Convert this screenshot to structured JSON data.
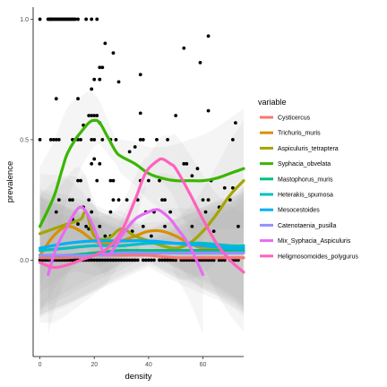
{
  "chart_data": {
    "type": "scatter",
    "xlabel": "density",
    "ylabel": "prevalence",
    "xlim": [
      -2.5,
      75
    ],
    "ylim": [
      -0.4,
      1.05
    ],
    "x_ticks": [
      0,
      20,
      40,
      60
    ],
    "x_tick_labels": [
      "0",
      "20",
      "40",
      "60"
    ],
    "y_ticks": [
      0.0,
      0.5,
      1.0
    ],
    "y_tick_labels": [
      "0.0",
      "0.5",
      "1.0"
    ],
    "grid": false,
    "legend": {
      "title": "variable",
      "position": "right"
    },
    "points": [
      [
        0,
        1
      ],
      [
        4,
        1
      ],
      [
        3,
        1
      ],
      [
        3.5,
        1
      ],
      [
        4,
        1
      ],
      [
        4.5,
        1
      ],
      [
        5,
        1
      ],
      [
        5.5,
        1
      ],
      [
        6,
        1
      ],
      [
        6.5,
        1
      ],
      [
        7,
        1
      ],
      [
        7.5,
        1
      ],
      [
        8,
        1
      ],
      [
        8.5,
        1
      ],
      [
        9,
        1
      ],
      [
        9.5,
        1
      ],
      [
        10,
        1
      ],
      [
        10.5,
        1
      ],
      [
        11,
        1
      ],
      [
        11.5,
        1
      ],
      [
        12,
        1
      ],
      [
        12.5,
        1
      ],
      [
        13,
        1
      ],
      [
        14,
        1
      ],
      [
        17,
        1
      ],
      [
        19,
        1
      ],
      [
        21,
        1
      ],
      [
        22,
        0.8
      ],
      [
        24,
        0.9
      ],
      [
        27,
        0.86
      ],
      [
        37,
        0.77
      ],
      [
        53,
        0.88
      ],
      [
        59,
        0.82
      ],
      [
        62,
        0.93
      ],
      [
        6,
        0.67
      ],
      [
        14,
        0.67
      ],
      [
        19,
        0.71
      ],
      [
        20,
        0.75
      ],
      [
        22,
        0.75
      ],
      [
        23,
        0.8
      ],
      [
        29,
        0.74
      ],
      [
        37,
        0.61
      ],
      [
        50,
        0.6
      ],
      [
        62,
        0.62
      ],
      [
        72,
        0.57
      ],
      [
        16,
        0.56
      ],
      [
        18,
        0.6
      ],
      [
        19,
        0.6
      ],
      [
        20,
        0.6
      ],
      [
        21,
        0.6
      ],
      [
        22,
        0.57
      ],
      [
        23,
        0.5
      ],
      [
        0,
        0.5
      ],
      [
        4,
        0.5
      ],
      [
        5,
        0.5
      ],
      [
        6,
        0.5
      ],
      [
        7,
        0.5
      ],
      [
        12,
        0.5
      ],
      [
        13,
        0.5
      ],
      [
        14,
        0.5
      ],
      [
        15,
        0.5
      ],
      [
        19,
        0.5
      ],
      [
        20,
        0.5
      ],
      [
        26,
        0.5
      ],
      [
        28,
        0.5
      ],
      [
        33,
        0.45
      ],
      [
        35,
        0.47
      ],
      [
        37,
        0.5
      ],
      [
        38,
        0.5
      ],
      [
        43,
        0.5
      ],
      [
        47,
        0.5
      ],
      [
        71,
        0.5
      ],
      [
        14,
        0.33
      ],
      [
        15,
        0.33
      ],
      [
        19,
        0.4
      ],
      [
        20,
        0.42
      ],
      [
        21,
        0.33
      ],
      [
        22,
        0.4
      ],
      [
        26,
        0.33
      ],
      [
        27,
        0.33
      ],
      [
        37,
        0.33
      ],
      [
        40,
        0.33
      ],
      [
        44,
        0.33
      ],
      [
        53,
        0.4
      ],
      [
        54,
        0.4
      ],
      [
        56,
        0.35
      ],
      [
        58,
        0.38
      ],
      [
        63,
        0.33
      ],
      [
        68,
        0.3
      ],
      [
        71,
        0.3
      ],
      [
        6,
        0.2
      ],
      [
        7,
        0.25
      ],
      [
        11,
        0.25
      ],
      [
        12,
        0.25
      ],
      [
        16,
        0.22
      ],
      [
        18,
        0.25
      ],
      [
        19,
        0.2
      ],
      [
        26,
        0.2
      ],
      [
        27,
        0.25
      ],
      [
        29,
        0.25
      ],
      [
        32,
        0.25
      ],
      [
        36,
        0.25
      ],
      [
        39,
        0.2
      ],
      [
        42,
        0.2
      ],
      [
        45,
        0.25
      ],
      [
        46,
        0.25
      ],
      [
        48,
        0.2
      ],
      [
        60,
        0.25
      ],
      [
        61,
        0.2
      ],
      [
        62,
        0.25
      ],
      [
        66,
        0.22
      ],
      [
        70,
        0.25
      ],
      [
        12,
        0.17
      ],
      [
        14,
        0.15
      ],
      [
        17,
        0.14
      ],
      [
        18,
        0.13
      ],
      [
        22,
        0.14
      ],
      [
        24,
        0.1
      ],
      [
        26,
        0.1
      ],
      [
        34,
        0.12
      ],
      [
        38,
        0.14
      ],
      [
        41,
        0.1
      ],
      [
        46,
        0.14
      ],
      [
        56,
        0.14
      ],
      [
        64,
        0.12
      ],
      [
        73,
        0.14
      ],
      [
        0,
        0
      ],
      [
        1,
        0
      ],
      [
        2,
        0
      ],
      [
        3,
        0
      ],
      [
        4,
        0
      ],
      [
        5,
        0
      ],
      [
        6,
        0
      ],
      [
        7,
        0
      ],
      [
        8,
        0
      ],
      [
        9,
        0
      ],
      [
        10,
        0
      ],
      [
        11,
        0
      ],
      [
        12,
        0
      ],
      [
        13,
        0
      ],
      [
        14,
        0
      ],
      [
        15,
        0
      ],
      [
        16,
        0
      ],
      [
        17,
        0
      ],
      [
        18,
        0
      ],
      [
        19,
        0
      ],
      [
        20,
        0
      ],
      [
        21,
        0
      ],
      [
        22,
        0
      ],
      [
        23,
        0
      ],
      [
        24,
        0
      ],
      [
        25,
        0
      ],
      [
        26,
        0
      ],
      [
        27,
        0
      ],
      [
        28,
        0
      ],
      [
        29,
        0
      ],
      [
        30,
        0
      ],
      [
        31,
        0
      ],
      [
        32,
        0
      ],
      [
        33,
        0
      ],
      [
        34,
        0
      ],
      [
        35,
        0
      ],
      [
        36,
        0
      ],
      [
        38,
        0
      ],
      [
        39,
        0
      ],
      [
        40,
        0
      ],
      [
        41,
        0
      ],
      [
        42,
        0
      ],
      [
        44,
        0
      ],
      [
        45,
        0
      ],
      [
        46,
        0
      ],
      [
        47,
        0
      ],
      [
        48,
        0
      ],
      [
        49,
        0
      ],
      [
        50,
        0
      ],
      [
        52,
        0
      ],
      [
        53,
        0
      ],
      [
        54,
        0
      ],
      [
        55,
        0
      ],
      [
        56,
        0
      ],
      [
        57,
        0
      ],
      [
        58,
        0
      ],
      [
        59,
        0
      ],
      [
        60,
        0
      ],
      [
        61,
        0
      ],
      [
        62,
        0
      ],
      [
        63,
        0
      ],
      [
        64,
        0
      ],
      [
        66,
        0
      ],
      [
        67,
        0
      ],
      [
        68,
        0
      ],
      [
        70,
        0
      ],
      [
        71,
        0
      ],
      [
        72,
        0
      ],
      [
        73,
        0
      ]
    ],
    "series": [
      {
        "name": "Cysticercus",
        "color": "#F8766D",
        "x": [
          0,
          10,
          20,
          30,
          40,
          50,
          60,
          70,
          75
        ],
        "y": [
          0.01,
          0.01,
          0.02,
          0.02,
          0.02,
          0.01,
          0.01,
          0.01,
          0.01
        ]
      },
      {
        "name": "Trichuris_muris",
        "color": "#D89000",
        "x": [
          0,
          5,
          10,
          15,
          20,
          25,
          30,
          35,
          40,
          45,
          50,
          55,
          60,
          65,
          70,
          75
        ],
        "y": [
          0.02,
          0.1,
          0.14,
          0.12,
          0.08,
          0.07,
          0.08,
          0.1,
          0.12,
          0.12,
          0.1,
          0.07,
          0.05,
          0.05,
          0.04,
          0.03
        ]
      },
      {
        "name": "Aspiculuris_tetraptera",
        "color": "#A3A500",
        "x": [
          0,
          5,
          10,
          15,
          17,
          20,
          25,
          30,
          35,
          40,
          45,
          50,
          55,
          60,
          65,
          70,
          75
        ],
        "y": [
          0.11,
          0.13,
          0.15,
          0.17,
          0.2,
          0.1,
          0.09,
          0.13,
          0.1,
          0.08,
          0.06,
          0.05,
          0.07,
          0.12,
          0.19,
          0.27,
          0.33
        ]
      },
      {
        "name": "Syphacia_obvelata",
        "color": "#39B600",
        "x": [
          0,
          5,
          8,
          10,
          13,
          15,
          18,
          20,
          22,
          25,
          28,
          30,
          35,
          40,
          45,
          50,
          55,
          60,
          65,
          70,
          75
        ],
        "y": [
          0.14,
          0.26,
          0.37,
          0.44,
          0.5,
          0.53,
          0.57,
          0.58,
          0.57,
          0.51,
          0.45,
          0.43,
          0.4,
          0.36,
          0.34,
          0.33,
          0.33,
          0.33,
          0.34,
          0.36,
          0.38
        ]
      },
      {
        "name": "Mastophorus_muris",
        "color": "#00BF7D",
        "x": [
          0,
          10,
          20,
          30,
          40,
          50,
          60,
          70,
          75
        ],
        "y": [
          0.02,
          0.02,
          0.03,
          0.04,
          0.04,
          0.04,
          0.04,
          0.04,
          0.04
        ]
      },
      {
        "name": "Heterakis_spumosa",
        "color": "#00BFC4",
        "x": [
          0,
          10,
          20,
          30,
          40,
          50,
          60,
          70,
          75
        ],
        "y": [
          0.04,
          0.05,
          0.06,
          0.06,
          0.07,
          0.07,
          0.07,
          0.06,
          0.06
        ]
      },
      {
        "name": "Mesocestoides",
        "color": "#00B0F6",
        "x": [
          0,
          10,
          20,
          30,
          40,
          50,
          60,
          70,
          75
        ],
        "y": [
          0.05,
          0.07,
          0.08,
          0.08,
          0.08,
          0.07,
          0.06,
          0.05,
          0.05
        ]
      },
      {
        "name": "Catenotaenia_pusilla",
        "color": "#9590FF",
        "x": [
          0,
          10,
          20,
          30,
          40,
          50,
          60,
          70,
          75
        ],
        "y": [
          0.02,
          0.02,
          0.02,
          0.03,
          0.03,
          0.03,
          0.03,
          0.03,
          0.03
        ]
      },
      {
        "name": "Mix_Syphacia_Aspiculuris",
        "color": "#E76BF3",
        "x": [
          3,
          6,
          10,
          13,
          15,
          17,
          20,
          23,
          25,
          28,
          30,
          35,
          40,
          43,
          45,
          48,
          50,
          55,
          60
        ],
        "y": [
          -0.06,
          0.05,
          0.14,
          0.2,
          0.22,
          0.2,
          0.13,
          0.04,
          0.02,
          0.06,
          0.1,
          0.17,
          0.2,
          0.21,
          0.2,
          0.17,
          0.14,
          0.06,
          -0.06
        ]
      },
      {
        "name": "Heligmosomoides_polygurus",
        "color": "#FF62BC",
        "x": [
          0,
          5,
          10,
          15,
          20,
          25,
          30,
          35,
          38,
          40,
          43,
          45,
          48,
          50,
          55,
          60,
          65,
          70,
          75
        ],
        "y": [
          -0.01,
          -0.03,
          -0.02,
          0.0,
          0.02,
          0.05,
          0.12,
          0.25,
          0.34,
          0.38,
          0.41,
          0.42,
          0.4,
          0.38,
          0.28,
          0.17,
          0.07,
          0.0,
          -0.05
        ]
      }
    ]
  }
}
